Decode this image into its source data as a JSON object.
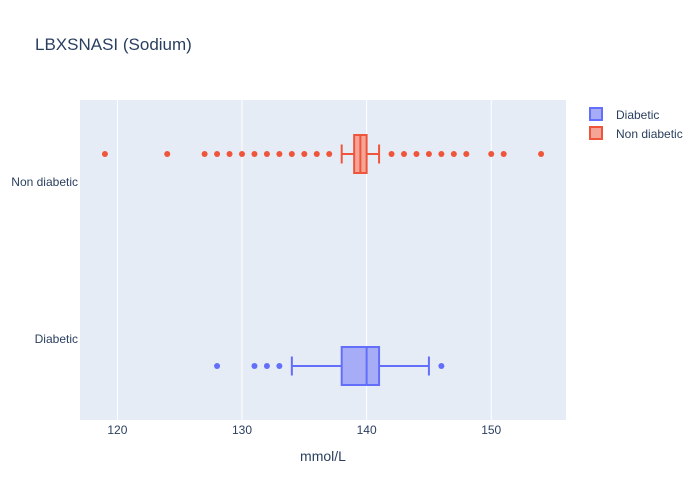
{
  "chart_data": {
    "type": "box",
    "orientation": "horizontal",
    "title": "LBXSNASI (Sodium)",
    "xlabel": "mmol/L",
    "ylabel": "",
    "xlim": [
      117,
      156
    ],
    "x_ticks": [
      120,
      130,
      140,
      150
    ],
    "categories": [
      "Diabetic",
      "Non diabetic"
    ],
    "legend": {
      "placement": "top-right",
      "entries": [
        "Diabetic",
        "Non diabetic"
      ]
    },
    "grid": true,
    "background": "#e5ecf6",
    "series": [
      {
        "name": "Diabetic",
        "category": "Diabetic",
        "color": "#636efa",
        "fill": "#a7acf7",
        "q1": 138,
        "median": 140,
        "q3": 141,
        "lower_fence": 134,
        "upper_fence": 145,
        "outliers": [
          128,
          131,
          132,
          133,
          146
        ]
      },
      {
        "name": "Non diabetic",
        "category": "Non diabetic",
        "color": "#ef553b",
        "fill": "#f5a596",
        "q1": 139,
        "median": 139.5,
        "q3": 140,
        "lower_fence": 138,
        "upper_fence": 141,
        "outliers": [
          119,
          124,
          127,
          128,
          129,
          130,
          131,
          132,
          133,
          134,
          135,
          136,
          137,
          142,
          143,
          144,
          145,
          146,
          147,
          148,
          150,
          151,
          154
        ]
      }
    ]
  }
}
